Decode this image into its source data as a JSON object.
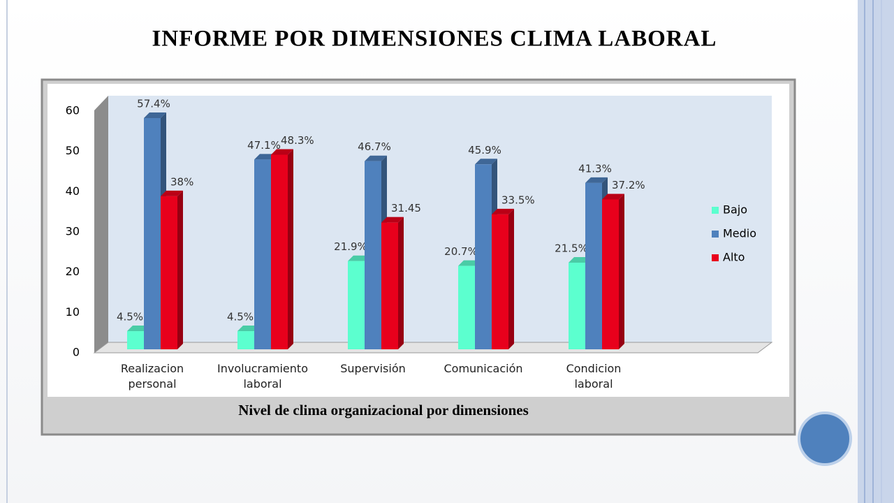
{
  "title": "INFORME POR DIMENSIONES CLIMA LABORAL",
  "chart_data": {
    "type": "bar",
    "x_label": "Nivel de clima organizacional por dimensiones",
    "categories": [
      "Realizacion personal",
      "Involucramiento laboral",
      "Supervisión",
      "Comunicación",
      "Condicion laboral"
    ],
    "series": [
      {
        "name": "Bajo",
        "color": "#5cffcf",
        "values": [
          4.5,
          4.5,
          21.9,
          20.7,
          21.5
        ],
        "value_labels": [
          "4.5%",
          "4.5%",
          "21.9%",
          "20.7%",
          "21.5%"
        ]
      },
      {
        "name": "Medio",
        "color": "#4f81bd",
        "values": [
          57.4,
          47.1,
          46.7,
          45.9,
          41.3
        ],
        "value_labels": [
          "57.4%",
          "47.1%",
          "46.7%",
          "45.9%",
          "41.3%"
        ]
      },
      {
        "name": "Alto",
        "color": "#e8001c",
        "values": [
          38,
          48.3,
          31.45,
          33.5,
          37.2
        ],
        "value_labels": [
          "38%",
          "48.3%",
          "31.45",
          "33.5%",
          "37.2%"
        ]
      }
    ],
    "ylim": [
      0,
      60
    ],
    "yticks": [
      0,
      10,
      20,
      30,
      40,
      50,
      60
    ],
    "legend": "right"
  }
}
